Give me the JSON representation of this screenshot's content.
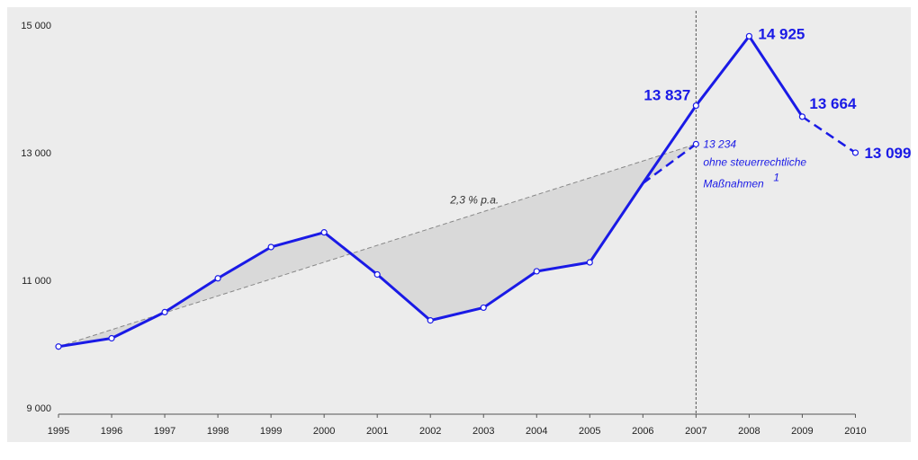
{
  "chart_data": {
    "type": "line",
    "title": "",
    "xlabel": "",
    "ylabel": "",
    "x": [
      1995,
      1996,
      1997,
      1998,
      1999,
      2000,
      2001,
      2002,
      2003,
      2004,
      2005,
      2006,
      2007,
      2008,
      2009,
      2010
    ],
    "x_tick_labels": [
      "1995",
      "1996",
      "1997",
      "1998",
      "1999",
      "2000",
      "2001",
      "2002",
      "2003",
      "2004",
      "2005",
      "2006",
      "2007",
      "2008",
      "2009",
      "2010"
    ],
    "ylim": [
      9000,
      15000
    ],
    "y_ticks": [
      9000,
      11000,
      13000,
      15000
    ],
    "y_tick_labels": [
      "9 000",
      "11 000",
      "13 000",
      "15 000"
    ],
    "grid": false,
    "series": [
      {
        "style": "solid",
        "color": "#1a1ae6",
        "x": [
          1995,
          1996,
          1997,
          1998,
          1999,
          2000,
          2001,
          2002,
          2003,
          2004,
          2005,
          2006,
          2007,
          2008,
          2009
        ],
        "values": [
          10060,
          10190,
          10600,
          11130,
          11620,
          11850,
          11190,
          10470,
          10670,
          11240,
          11380,
          12620,
          13837,
          14925,
          13664
        ]
      },
      {
        "style": "dashed",
        "color": "#1a1ae6",
        "x": [
          2006,
          2007
        ],
        "values": [
          12620,
          13234
        ]
      },
      {
        "style": "dashed",
        "color": "#1a1ae6",
        "x": [
          2009,
          2010
        ],
        "values": [
          13664,
          13099
        ]
      },
      {
        "style": "dashed-trend",
        "color": "#888888",
        "x": [
          1995,
          2007
        ],
        "values": [
          10060,
          13234
        ]
      }
    ],
    "data_labels": [
      {
        "x": 2007,
        "y": 13837,
        "text": "13 837"
      },
      {
        "x": 2008,
        "y": 14925,
        "text": "14 925"
      },
      {
        "x": 2009,
        "y": 13664,
        "text": "13 664"
      },
      {
        "x": 2010,
        "y": 13099,
        "text": "13 099"
      }
    ],
    "annotations": {
      "alt_value": "13 234",
      "alt_text_line1": "ohne steuerrechtliche",
      "alt_text_line2": "Maßnahmen",
      "alt_superscript": "1",
      "trend_label": "2,3 % p.a."
    },
    "reference_line_x": 2007,
    "colors": {
      "background": "#ececec",
      "line": "#1a1ae6",
      "fill": "#d9d9d9",
      "trend": "#888888"
    }
  }
}
